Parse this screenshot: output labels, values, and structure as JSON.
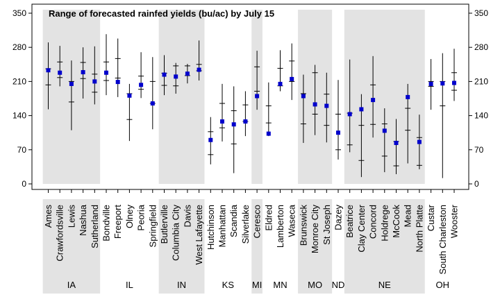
{
  "chart_data": {
    "type": "range-dot",
    "title": "Range of forecasted rainfed yields (bu/ac) by July 15",
    "ylim": [
      0,
      350
    ],
    "yticks": [
      0,
      70,
      140,
      210,
      280,
      350
    ],
    "colors": {
      "point": "#0000cc",
      "shade": "#e3e3e3",
      "line": "#000000"
    },
    "sites": [
      {
        "name": "Ames",
        "state": "IA",
        "low": 153,
        "q1": 203,
        "q3": 236,
        "high": 290,
        "forecast": 233
      },
      {
        "name": "Crawfordsville",
        "state": "IA",
        "low": 200,
        "q1": 218,
        "q3": 250,
        "high": 283,
        "forecast": 228
      },
      {
        "name": "Lewis",
        "state": "IA",
        "low": 110,
        "q1": 168,
        "q3": 210,
        "high": 253,
        "forecast": 205
      },
      {
        "name": "Nashua",
        "state": "IA",
        "low": 175,
        "q1": 216,
        "q3": 249,
        "high": 280,
        "forecast": 229
      },
      {
        "name": "Sutherland",
        "state": "IA",
        "low": 163,
        "q1": 188,
        "q3": 225,
        "high": 282,
        "forecast": 210
      },
      {
        "name": "Bondville",
        "state": "IL",
        "low": 182,
        "q1": 212,
        "q3": 250,
        "high": 307,
        "forecast": 228
      },
      {
        "name": "Freeport",
        "state": "IL",
        "low": 178,
        "q1": 217,
        "q3": 257,
        "high": 298,
        "forecast": 209
      },
      {
        "name": "Olney",
        "state": "IL",
        "low": 88,
        "q1": 132,
        "q3": 185,
        "high": 205,
        "forecast": 181
      },
      {
        "name": "Peoria",
        "state": "IL",
        "low": 176,
        "q1": 194,
        "q3": 221,
        "high": 270,
        "forecast": 203
      },
      {
        "name": "Springfield",
        "state": "IL",
        "low": 112,
        "q1": 165,
        "q3": 210,
        "high": 260,
        "forecast": 165
      },
      {
        "name": "Butlerville",
        "state": "IN",
        "low": 182,
        "q1": 202,
        "q3": 227,
        "high": 264,
        "forecast": 224
      },
      {
        "name": "Columbia City",
        "state": "IN",
        "low": 185,
        "q1": 201,
        "q3": 242,
        "high": 248,
        "forecast": 220
      },
      {
        "name": "Davis",
        "state": "IN",
        "low": 206,
        "q1": 222,
        "q3": 242,
        "high": 246,
        "forecast": 226
      },
      {
        "name": "West Lafayette",
        "state": "IN",
        "low": 212,
        "q1": 232,
        "q3": 245,
        "high": 294,
        "forecast": 234
      },
      {
        "name": "Hutchinson",
        "state": "KS",
        "low": 40,
        "q1": 60,
        "q3": 107,
        "high": 137,
        "forecast": 90
      },
      {
        "name": "Manhattan",
        "state": "KS",
        "low": 87,
        "q1": 115,
        "q3": 165,
        "high": 205,
        "forecast": 128
      },
      {
        "name": "Scandia",
        "state": "KS",
        "low": 22,
        "q1": 82,
        "q3": 150,
        "high": 200,
        "forecast": 122
      },
      {
        "name": "Silverlake",
        "state": "KS",
        "low": 98,
        "q1": 128,
        "q3": 162,
        "high": 190,
        "forecast": 128
      },
      {
        "name": "Ceresco",
        "state": "MI",
        "low": 152,
        "q1": 190,
        "q3": 240,
        "high": 273,
        "forecast": 180
      },
      {
        "name": "Eldred",
        "state": "MN",
        "low": 98,
        "q1": 125,
        "q3": 160,
        "high": 208,
        "forecast": 103
      },
      {
        "name": "Lamberton",
        "state": "MN",
        "low": 190,
        "q1": 201,
        "q3": 237,
        "high": 274,
        "forecast": 205
      },
      {
        "name": "Waseca",
        "state": "MN",
        "low": 172,
        "q1": 210,
        "q3": 252,
        "high": 288,
        "forecast": 215
      },
      {
        "name": "Brunswick",
        "state": "MO",
        "low": 84,
        "q1": 123,
        "q3": 185,
        "high": 224,
        "forecast": 180
      },
      {
        "name": "Monroe City",
        "state": "MO",
        "low": 100,
        "q1": 143,
        "q3": 228,
        "high": 244,
        "forecast": 163
      },
      {
        "name": "St Joseph",
        "state": "MO",
        "low": 85,
        "q1": 120,
        "q3": 184,
        "high": 228,
        "forecast": 160
      },
      {
        "name": "Dazey",
        "state": "ND",
        "low": 50,
        "q1": 70,
        "q3": 143,
        "high": 213,
        "forecast": 105
      },
      {
        "name": "Beatrice",
        "state": "NE",
        "low": 65,
        "q1": 80,
        "q3": 145,
        "high": 255,
        "forecast": 143
      },
      {
        "name": "Clay Center",
        "state": "NE",
        "low": 14,
        "q1": 48,
        "q3": 120,
        "high": 184,
        "forecast": 153
      },
      {
        "name": "Concord",
        "state": "NE",
        "low": 95,
        "q1": 122,
        "q3": 203,
        "high": 262,
        "forecast": 172
      },
      {
        "name": "Holdrege",
        "state": "NE",
        "low": 24,
        "q1": 57,
        "q3": 123,
        "high": 155,
        "forecast": 109
      },
      {
        "name": "McCook",
        "state": "NE",
        "low": 20,
        "q1": 37,
        "q3": 87,
        "high": 133,
        "forecast": 84
      },
      {
        "name": "Mead",
        "state": "NE",
        "low": 42,
        "q1": 110,
        "q3": 155,
        "high": 205,
        "forecast": 178
      },
      {
        "name": "North Platte",
        "state": "NE",
        "low": 30,
        "q1": 38,
        "q3": 95,
        "high": 142,
        "forecast": 86
      },
      {
        "name": "Custar",
        "state": "OH",
        "low": 152,
        "q1": 200,
        "q3": 210,
        "high": 256,
        "forecast": 205
      },
      {
        "name": "South Charleston",
        "state": "OH",
        "low": 12,
        "q1": 160,
        "q3": 210,
        "high": 268,
        "forecast": 206
      },
      {
        "name": "Wooster",
        "state": "OH",
        "low": 170,
        "q1": 192,
        "q3": 228,
        "high": 277,
        "forecast": 207
      }
    ],
    "state_groups": [
      {
        "label": "IA",
        "shaded": true
      },
      {
        "label": "IL",
        "shaded": false
      },
      {
        "label": "IN",
        "shaded": true
      },
      {
        "label": "KS",
        "shaded": false
      },
      {
        "label": "MI",
        "shaded": true
      },
      {
        "label": "MN",
        "shaded": false
      },
      {
        "label": "MO",
        "shaded": true
      },
      {
        "label": "ND",
        "shaded": false
      },
      {
        "label": "NE",
        "shaded": true
      },
      {
        "label": "OH",
        "shaded": false
      }
    ]
  }
}
